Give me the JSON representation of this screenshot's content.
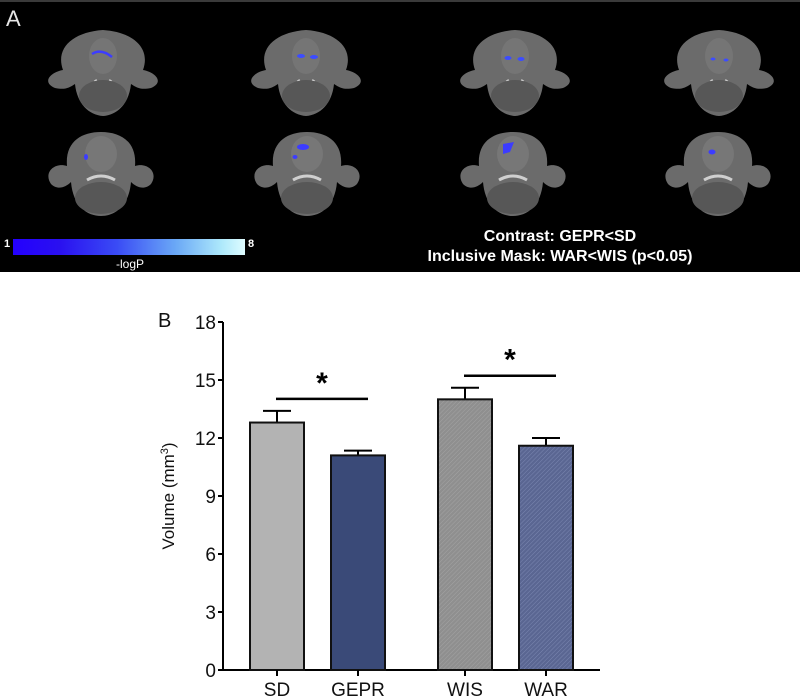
{
  "panel_a": {
    "label": "A",
    "colorbar": {
      "min": "1",
      "max": "8",
      "label": "-logP",
      "colors": [
        "#2400ff",
        "#dffcff"
      ]
    },
    "contrast_line1": "Contrast: GEPR<SD",
    "contrast_line2": "Inclusive Mask: WAR<WIS (p<0.05)",
    "slices": [
      {
        "row": 0,
        "col": 0
      },
      {
        "row": 0,
        "col": 1
      },
      {
        "row": 0,
        "col": 2
      },
      {
        "row": 0,
        "col": 3
      },
      {
        "row": 1,
        "col": 0
      },
      {
        "row": 1,
        "col": 1
      },
      {
        "row": 1,
        "col": 2
      },
      {
        "row": 1,
        "col": 3
      }
    ]
  },
  "panel_b": {
    "label": "B"
  },
  "chart_data": {
    "type": "bar",
    "title": "",
    "xlabel": "",
    "ylabel": "Volume (mm3)",
    "ylabel_main": "Volume (mm",
    "ylabel_sup": "3",
    "ylabel_close": ")",
    "ylim": [
      0,
      18
    ],
    "yticks": [
      0,
      3,
      6,
      9,
      12,
      15,
      18
    ],
    "categories": [
      "SD",
      "GEPR",
      "WIS",
      "WAR"
    ],
    "values": [
      12.8,
      11.1,
      14.0,
      11.6
    ],
    "errors": [
      0.6,
      0.25,
      0.6,
      0.4
    ],
    "colors": [
      "#b3b3b3",
      "#3a4a78",
      "#8f8f8f",
      "#5e6a96"
    ],
    "hatched": [
      false,
      false,
      true,
      true
    ],
    "significance": [
      {
        "between": [
          "SD",
          "GEPR"
        ],
        "label": "*"
      },
      {
        "between": [
          "WIS",
          "WAR"
        ],
        "label": "*"
      }
    ],
    "grid": false,
    "legend": "none"
  }
}
